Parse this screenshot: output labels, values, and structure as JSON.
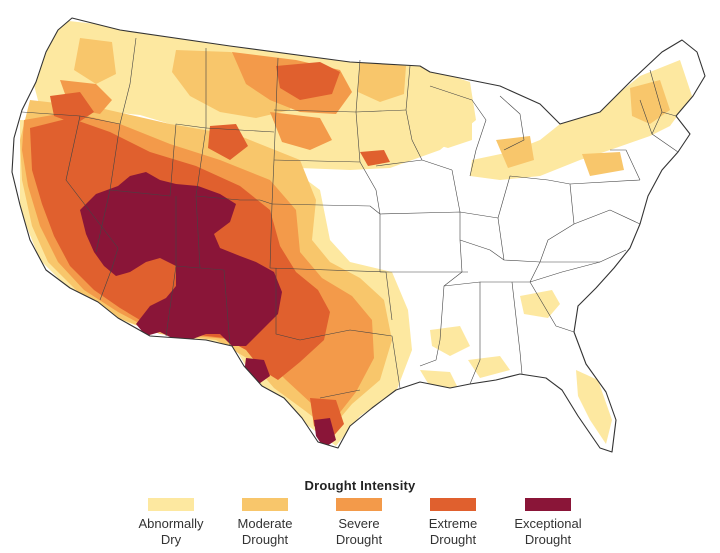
{
  "map": {
    "subject": "Drought conditions across the contiguous United States",
    "colors": {
      "land": "#ffffff",
      "border": "#333333",
      "abnormally_dry": "#fde8a0",
      "moderate": "#f8c66b",
      "severe": "#f39a4a",
      "extreme": "#e0602e",
      "exceptional": "#8a1538"
    }
  },
  "legend": {
    "title": "Drought Intensity",
    "categories": [
      {
        "line1": "Abnormally",
        "line2": "Dry",
        "color": "#fde8a0"
      },
      {
        "line1": "Moderate",
        "line2": "Drought",
        "color": "#f8c66b"
      },
      {
        "line1": "Severe",
        "line2": "Drought",
        "color": "#f39a4a"
      },
      {
        "line1": "Extreme",
        "line2": "Drought",
        "color": "#e0602e"
      },
      {
        "line1": "Exceptional",
        "line2": "Drought",
        "color": "#8a1538"
      }
    ]
  }
}
